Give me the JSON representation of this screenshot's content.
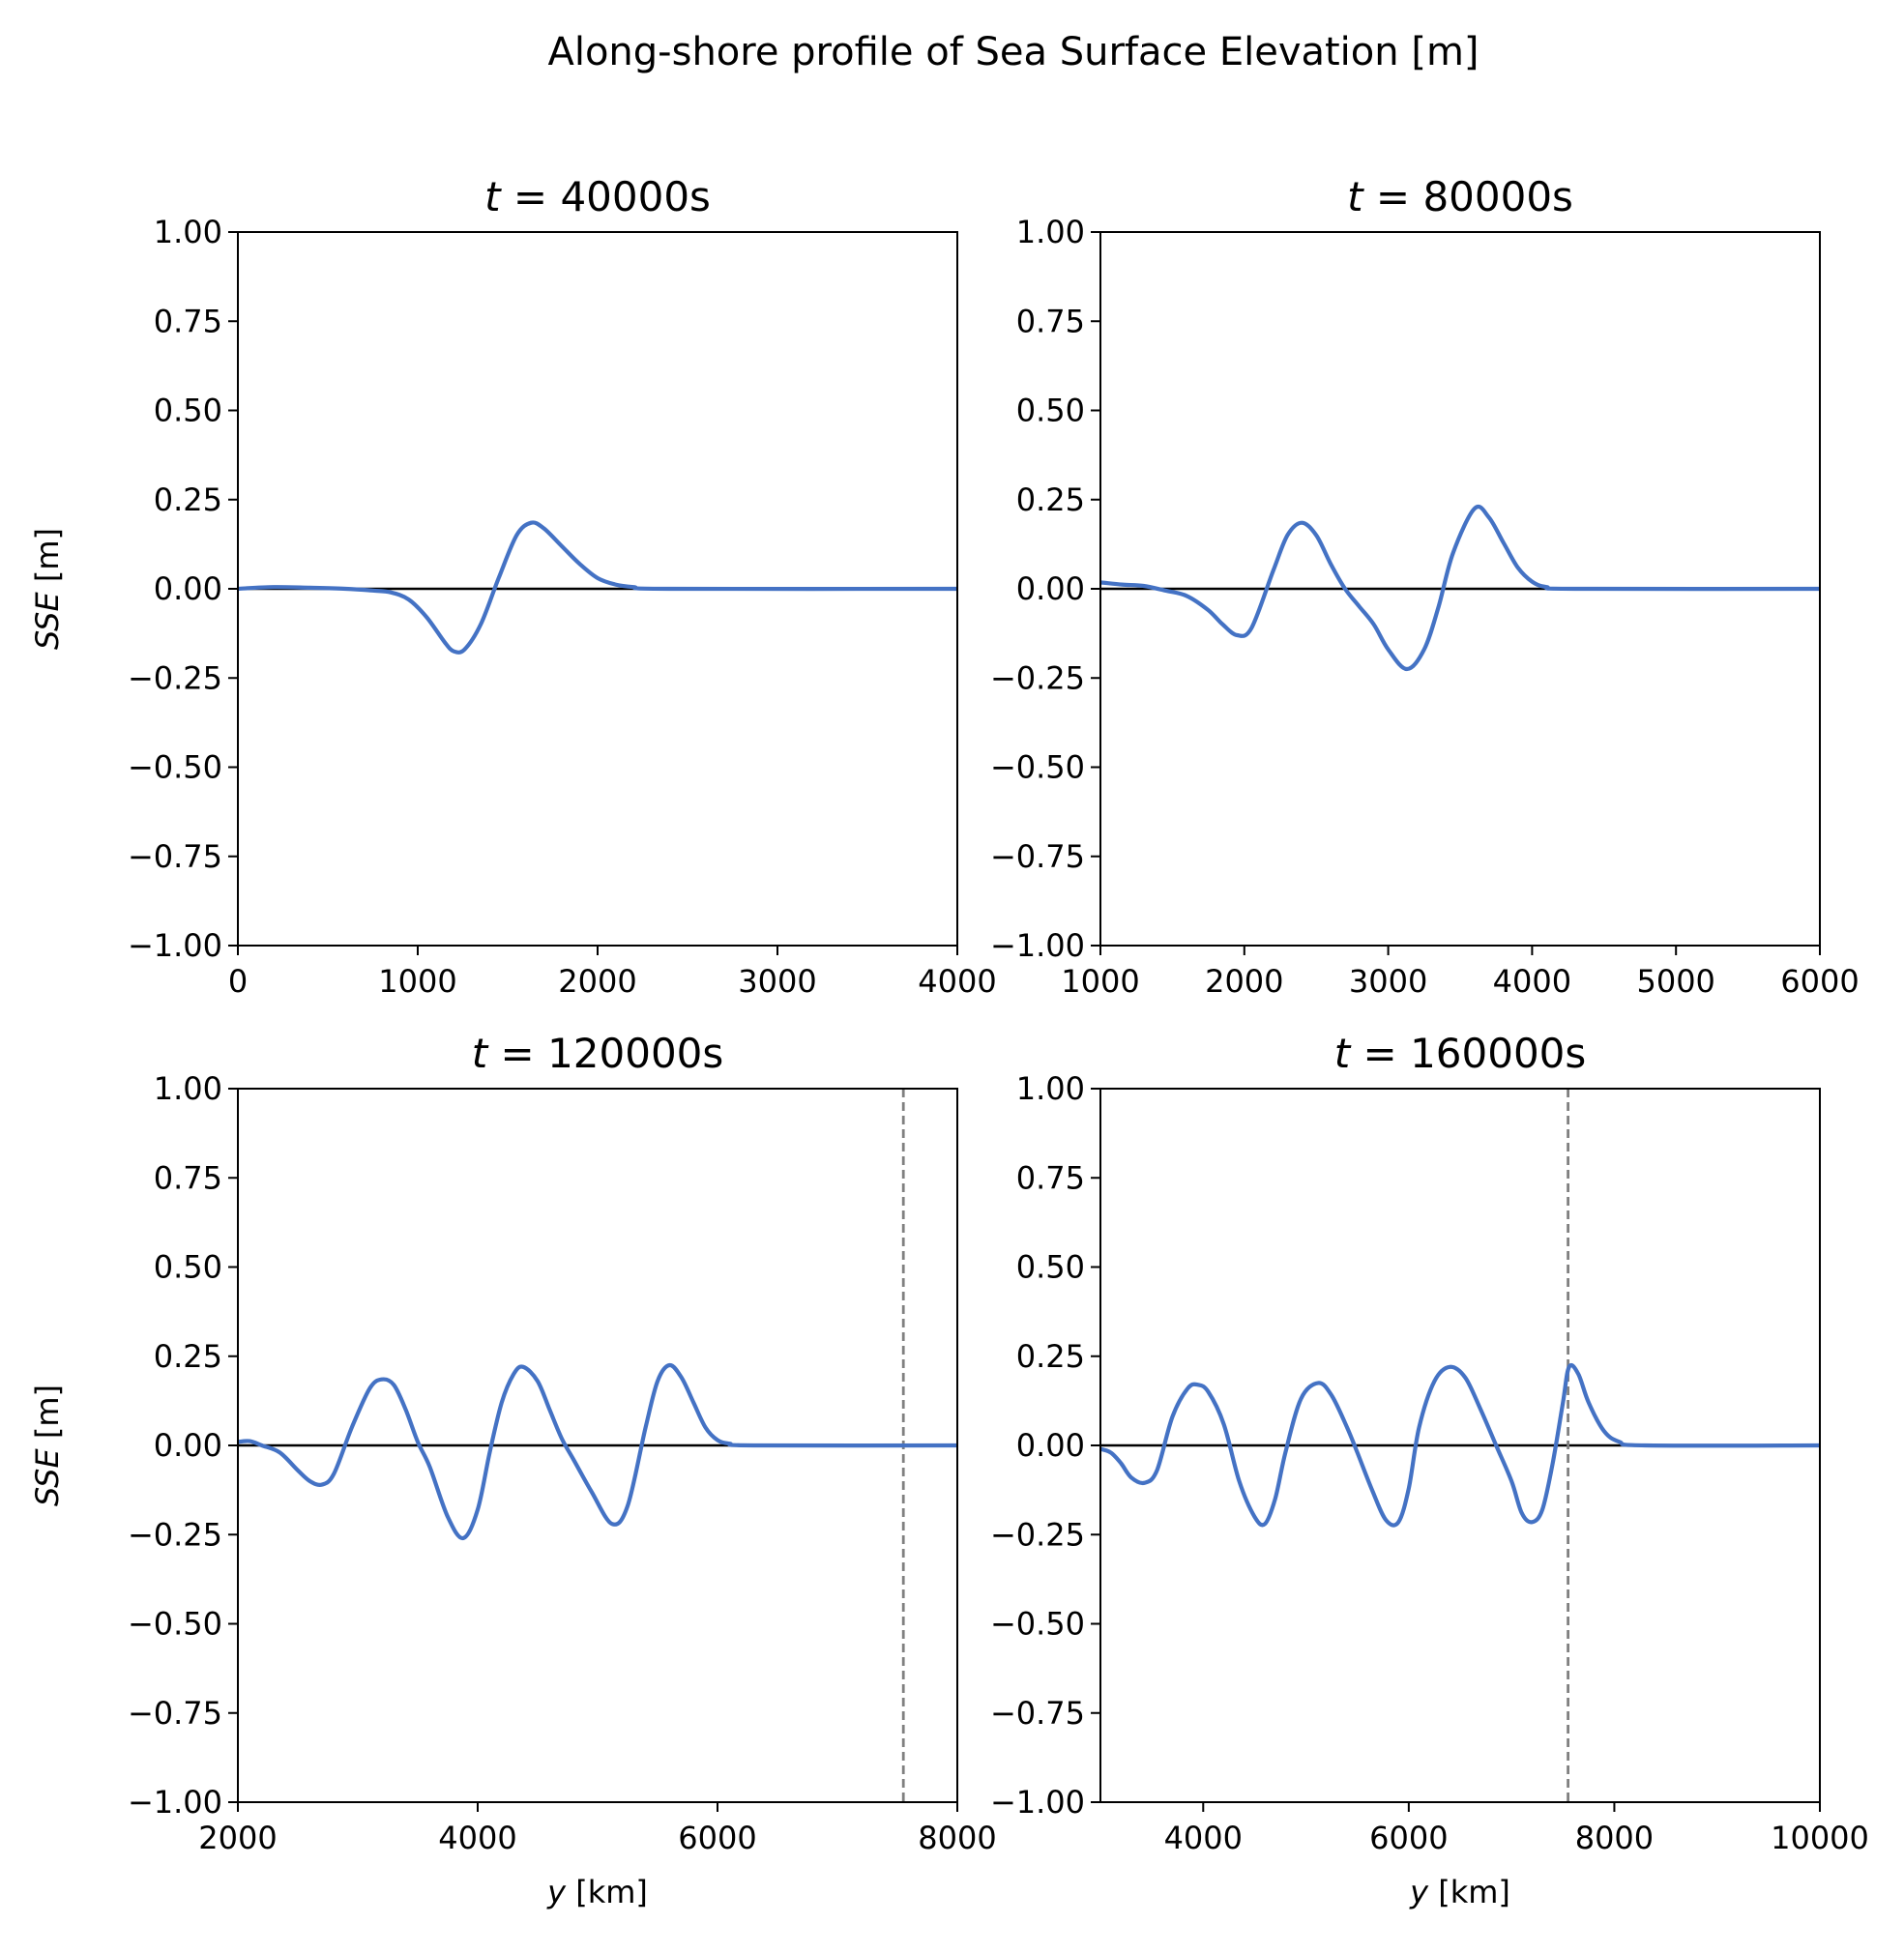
{
  "suptitle": "Along-shore profile of Sea Surface Elevation [m]",
  "colors": {
    "series": "#4472c4",
    "zero_line": "#000000",
    "marker_line": "#808080",
    "axes": "#000000"
  },
  "chart_data": [
    {
      "type": "line",
      "title_var": "t",
      "title_eq": " = ",
      "title_val": "40000s",
      "xlabel_var": "",
      "xlabel_unit": "",
      "ylabel_var": "SSE",
      "ylabel_unit": " [m]",
      "xlim": [
        0,
        4000
      ],
      "ylim": [
        -1.0,
        1.0
      ],
      "xticks": [
        0,
        1000,
        2000,
        3000,
        4000
      ],
      "xtick_labels": [
        "0",
        "1000",
        "2000",
        "3000",
        "4000"
      ],
      "yticks": [
        1.0,
        0.75,
        0.5,
        0.25,
        0.0,
        -0.25,
        -0.5,
        -0.75,
        -1.0
      ],
      "ytick_labels": [
        "1.00",
        "0.75",
        "0.50",
        "0.25",
        "0.00",
        "−0.25",
        "−0.50",
        "−0.75",
        "−1.00"
      ],
      "zero_line": true,
      "vline_x": null,
      "x": [
        0,
        200,
        400,
        600,
        750,
        850,
        950,
        1050,
        1150,
        1200,
        1260,
        1350,
        1450,
        1550,
        1630,
        1700,
        1800,
        1900,
        2000,
        2100,
        2200,
        2400,
        4000
      ],
      "y": [
        0.0,
        0.005,
        0.003,
        0.0,
        -0.005,
        -0.01,
        -0.03,
        -0.08,
        -0.15,
        -0.175,
        -0.17,
        -0.1,
        0.03,
        0.15,
        0.185,
        0.17,
        0.12,
        0.07,
        0.03,
        0.012,
        0.005,
        0.0,
        0.0
      ]
    },
    {
      "type": "line",
      "title_var": "t",
      "title_eq": " = ",
      "title_val": "80000s",
      "xlabel_var": "",
      "xlabel_unit": "",
      "ylabel_var": "",
      "ylabel_unit": "",
      "xlim": [
        1000,
        6000
      ],
      "ylim": [
        -1.0,
        1.0
      ],
      "xticks": [
        1000,
        2000,
        3000,
        4000,
        5000,
        6000
      ],
      "xtick_labels": [
        "1000",
        "2000",
        "3000",
        "4000",
        "5000",
        "6000"
      ],
      "yticks": [
        1.0,
        0.75,
        0.5,
        0.25,
        0.0,
        -0.25,
        -0.5,
        -0.75,
        -1.0
      ],
      "ytick_labels": [
        "1.00",
        "0.75",
        "0.50",
        "0.25",
        "0.00",
        "−0.25",
        "−0.50",
        "−0.75",
        "−1.00"
      ],
      "zero_line": true,
      "vline_x": null,
      "x": [
        1000,
        1150,
        1300,
        1450,
        1600,
        1750,
        1850,
        1950,
        2050,
        2200,
        2300,
        2400,
        2500,
        2600,
        2700,
        2800,
        2900,
        3000,
        3130,
        3250,
        3350,
        3450,
        3600,
        3700,
        3800,
        3900,
        4000,
        4100,
        4300,
        6000
      ],
      "y": [
        0.018,
        0.012,
        0.008,
        -0.005,
        -0.02,
        -0.06,
        -0.1,
        -0.13,
        -0.11,
        0.05,
        0.15,
        0.185,
        0.15,
        0.07,
        0.0,
        -0.05,
        -0.1,
        -0.17,
        -0.225,
        -0.17,
        -0.05,
        0.1,
        0.225,
        0.2,
        0.13,
        0.06,
        0.02,
        0.005,
        0.0,
        0.0
      ]
    },
    {
      "type": "line",
      "title_var": "t",
      "title_eq": " = ",
      "title_val": "120000s",
      "xlabel_var": "y",
      "xlabel_unit": " [km]",
      "ylabel_var": "SSE",
      "ylabel_unit": " [m]",
      "xlim": [
        2000,
        8000
      ],
      "ylim": [
        -1.0,
        1.0
      ],
      "xticks": [
        2000,
        4000,
        6000,
        8000
      ],
      "xtick_labels": [
        "2000",
        "4000",
        "6000",
        "8000"
      ],
      "yticks": [
        1.0,
        0.75,
        0.5,
        0.25,
        0.0,
        -0.25,
        -0.5,
        -0.75,
        -1.0
      ],
      "ytick_labels": [
        "1.00",
        "0.75",
        "0.50",
        "0.25",
        "0.00",
        "−0.25",
        "−0.50",
        "−0.75",
        "−1.00"
      ],
      "zero_line": true,
      "vline_x": 7550,
      "x": [
        2000,
        2100,
        2200,
        2350,
        2500,
        2600,
        2700,
        2800,
        2950,
        3100,
        3200,
        3300,
        3400,
        3500,
        3600,
        3750,
        3880,
        4000,
        4100,
        4200,
        4300,
        4380,
        4500,
        4600,
        4700,
        4800,
        4950,
        5120,
        5250,
        5400,
        5500,
        5600,
        5700,
        5800,
        5900,
        6000,
        6100,
        6300,
        8000
      ],
      "y": [
        0.01,
        0.012,
        0.0,
        -0.02,
        -0.07,
        -0.1,
        -0.11,
        -0.08,
        0.05,
        0.16,
        0.185,
        0.17,
        0.1,
        0.01,
        -0.06,
        -0.2,
        -0.26,
        -0.18,
        -0.02,
        0.12,
        0.2,
        0.22,
        0.18,
        0.1,
        0.02,
        -0.04,
        -0.13,
        -0.22,
        -0.17,
        0.05,
        0.18,
        0.225,
        0.19,
        0.12,
        0.05,
        0.015,
        0.005,
        0.0,
        0.0
      ]
    },
    {
      "type": "line",
      "title_var": "t",
      "title_eq": " = ",
      "title_val": "160000s",
      "xlabel_var": "y",
      "xlabel_unit": " [km]",
      "ylabel_var": "",
      "ylabel_unit": "",
      "xlim": [
        3000,
        10000
      ],
      "ylim": [
        -1.0,
        1.0
      ],
      "xticks": [
        4000,
        6000,
        8000,
        10000
      ],
      "xtick_labels": [
        "4000",
        "6000",
        "8000",
        "10000"
      ],
      "yticks": [
        1.0,
        0.75,
        0.5,
        0.25,
        0.0,
        -0.25,
        -0.5,
        -0.75,
        -1.0
      ],
      "ytick_labels": [
        "1.00",
        "0.75",
        "0.50",
        "0.25",
        "0.00",
        "−0.25",
        "−0.50",
        "−0.75",
        "−1.00"
      ],
      "zero_line": true,
      "vline_x": 7550,
      "x": [
        3000,
        3100,
        3200,
        3300,
        3430,
        3550,
        3700,
        3850,
        3950,
        4050,
        4200,
        4350,
        4500,
        4600,
        4700,
        4800,
        4950,
        5120,
        5250,
        5400,
        5500,
        5650,
        5780,
        5900,
        6000,
        6100,
        6250,
        6400,
        6550,
        6700,
        6850,
        7000,
        7100,
        7200,
        7300,
        7400,
        7500,
        7560,
        7650,
        7750,
        7900,
        8050,
        8300,
        10000
      ],
      "y": [
        -0.01,
        -0.02,
        -0.05,
        -0.09,
        -0.105,
        -0.07,
        0.08,
        0.16,
        0.17,
        0.15,
        0.06,
        -0.1,
        -0.2,
        -0.22,
        -0.15,
        -0.02,
        0.13,
        0.175,
        0.14,
        0.05,
        -0.02,
        -0.13,
        -0.21,
        -0.215,
        -0.12,
        0.05,
        0.18,
        0.22,
        0.19,
        0.1,
        0.0,
        -0.1,
        -0.19,
        -0.215,
        -0.18,
        -0.05,
        0.12,
        0.22,
        0.2,
        0.12,
        0.04,
        0.01,
        0.0,
        0.0
      ]
    }
  ]
}
